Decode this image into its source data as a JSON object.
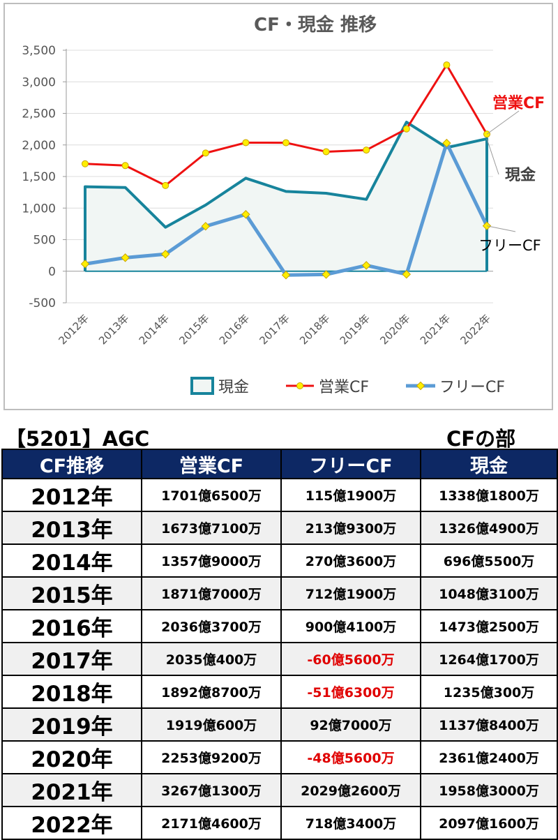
{
  "chart_data": {
    "type": "line",
    "title": "CF・現金 推移",
    "categories": [
      "2012年",
      "2013年",
      "2014年",
      "2015年",
      "2016年",
      "2017年",
      "2018年",
      "2019年",
      "2020年",
      "2021年",
      "2022年"
    ],
    "yticks": [
      "3,500",
      "3,000",
      "2,500",
      "2,000",
      "1,500",
      "1,000",
      "500",
      "0",
      "-500"
    ],
    "ylim": [
      -500,
      3500
    ],
    "grid": true,
    "legend_position": "bottom",
    "series": [
      {
        "name": "現金",
        "kind": "area",
        "color": "#17849c",
        "fill": "#f1f6f4",
        "values": [
          1338.18,
          1326.49,
          696.55,
          1048.31,
          1473.25,
          1264.17,
          1235.03,
          1137.84,
          2361.24,
          1958.3,
          2097.16
        ]
      },
      {
        "name": "営業CF",
        "kind": "line",
        "color": "#ee1111",
        "marker_color": "#ffee00",
        "values": [
          1701.65,
          1673.71,
          1357.9,
          1871.7,
          2036.37,
          2035.04,
          1892.87,
          1919.06,
          2253.92,
          3267.13,
          2171.46
        ]
      },
      {
        "name": "フリーCF",
        "kind": "line",
        "color": "#5b9bd5",
        "marker_color": "#ffee00",
        "values": [
          115.19,
          213.93,
          270.36,
          712.19,
          900.41,
          -60.56,
          -51.63,
          92.7,
          -48.56,
          2029.26,
          718.34
        ]
      }
    ],
    "annotations": [
      {
        "text": "営業CF",
        "color": "#ee1111"
      },
      {
        "text": "現金",
        "color": "#404040"
      },
      {
        "text": "フリーCF",
        "color": "#000000"
      }
    ]
  },
  "stock_title": "【5201】AGC",
  "section_title": "CFの部",
  "table": {
    "headers": [
      "CF推移",
      "営業CF",
      "フリーCF",
      "現金"
    ],
    "rows": [
      {
        "year": "2012年",
        "op": "1701億6500万",
        "free": "115億1900万",
        "cash": "1338億1800万",
        "free_neg": false
      },
      {
        "year": "2013年",
        "op": "1673億7100万",
        "free": "213億9300万",
        "cash": "1326億4900万",
        "free_neg": false
      },
      {
        "year": "2014年",
        "op": "1357億9000万",
        "free": "270億3600万",
        "cash": "696億5500万",
        "free_neg": false
      },
      {
        "year": "2015年",
        "op": "1871億7000万",
        "free": "712億1900万",
        "cash": "1048億3100万",
        "free_neg": false
      },
      {
        "year": "2016年",
        "op": "2036億3700万",
        "free": "900億4100万",
        "cash": "1473億2500万",
        "free_neg": false
      },
      {
        "year": "2017年",
        "op": "2035億400万",
        "free": "-60億5600万",
        "cash": "1264億1700万",
        "free_neg": true
      },
      {
        "year": "2018年",
        "op": "1892億8700万",
        "free": "-51億6300万",
        "cash": "1235億300万",
        "free_neg": true
      },
      {
        "year": "2019年",
        "op": "1919億600万",
        "free": "92億7000万",
        "cash": "1137億8400万",
        "free_neg": false
      },
      {
        "year": "2020年",
        "op": "2253億9200万",
        "free": "-48億5600万",
        "cash": "2361億2400万",
        "free_neg": true
      },
      {
        "year": "2021年",
        "op": "3267億1300万",
        "free": "2029億2600万",
        "cash": "1958億3000万",
        "free_neg": false
      },
      {
        "year": "2022年",
        "op": "2171億4600万",
        "free": "718億3400万",
        "cash": "2097億1600万",
        "free_neg": false
      }
    ]
  }
}
